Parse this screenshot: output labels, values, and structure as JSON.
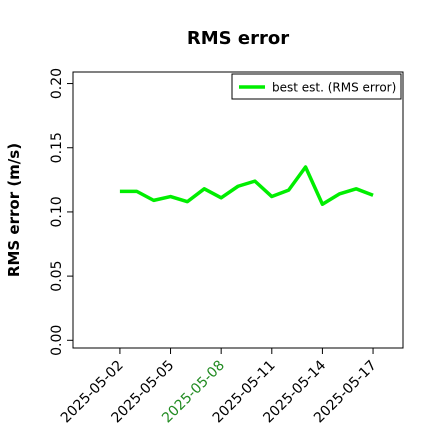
{
  "chart_data": {
    "type": "line",
    "title": "RMS error",
    "ylabel": "RMS error (m/s)",
    "x": [
      "2025-05-02",
      "2025-05-03",
      "2025-05-04",
      "2025-05-05",
      "2025-05-06",
      "2025-05-07",
      "2025-05-08",
      "2025-05-09",
      "2025-05-10",
      "2025-05-11",
      "2025-05-12",
      "2025-05-13",
      "2025-05-14",
      "2025-05-15",
      "2025-05-16",
      "2025-05-17"
    ],
    "series": [
      {
        "name": "best est. (RMS error)",
        "color": "#00ee00",
        "values": [
          0.116,
          0.116,
          0.109,
          0.112,
          0.108,
          0.118,
          0.111,
          0.12,
          0.124,
          0.112,
          0.117,
          0.135,
          0.106,
          0.114,
          0.118,
          0.113
        ]
      }
    ],
    "xlim": [
      "2025-04-29T05:17:00Z",
      "2025-05-18T18:36:00Z"
    ],
    "xticks": [
      "2025-05-02",
      "2025-05-05",
      "2025-05-08",
      "2025-05-11",
      "2025-05-14",
      "2025-05-17"
    ],
    "xtick_colors": [
      "#000000",
      "#000000",
      "#228b22",
      "#000000",
      "#000000",
      "#000000"
    ],
    "ylim": [
      -0.006,
      0.209
    ],
    "yticks": [
      {
        "value": 0,
        "label": "0.00"
      },
      {
        "value": 0.05,
        "label": "0.05"
      },
      {
        "value": 0.1,
        "label": "0.10"
      },
      {
        "value": 0.15,
        "label": "0.15"
      },
      {
        "value": 0.2,
        "label": "0.20"
      }
    ],
    "legend": "upper right"
  }
}
